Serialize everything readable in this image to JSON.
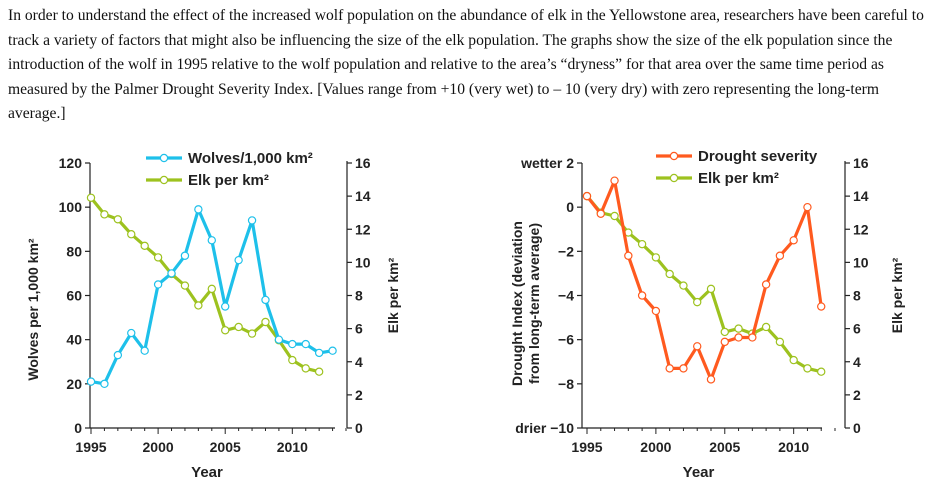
{
  "intro_text": "In order to understand the effect of the increased wolf population on the abundance of elk in the Yellowstone area, researchers have been careful to track a variety of factors that might also be influencing the size of the elk population. The graphs show the size of the elk population since the introduction of the wolf in 1995 relative to the wolf population and relative to the area’s “dryness” for that area over the same time period as measured by the Palmer Drought Severity Index. [Values range from +10 (very wet) to – 10 (very dry) with zero representing the long-term average.]",
  "colors": {
    "wolves": "#1ec0ea",
    "elk": "#9dc21f",
    "drought": "#ff5a1f",
    "axis": "#222222"
  },
  "chart_data": [
    {
      "type": "line",
      "xlabel": "Year",
      "ylabel_left": "Wolves per 1,000 km²",
      "ylabel_right": "Elk per km²",
      "xlim": [
        1995,
        2014
      ],
      "x_ticks": [
        1995,
        2000,
        2005,
        2010
      ],
      "x_tick_labels": [
        "1995",
        "2000",
        "2005",
        "2010"
      ],
      "ylim_left": [
        0,
        120
      ],
      "y_ticks_left": [
        0,
        20,
        40,
        60,
        80,
        100,
        120
      ],
      "y_tick_labels_left": [
        "0",
        "20",
        "40",
        "60",
        "80",
        "100",
        "120"
      ],
      "ylim_right": [
        0,
        16
      ],
      "y_ticks_right": [
        0,
        2,
        4,
        6,
        8,
        10,
        12,
        14,
        16
      ],
      "y_tick_labels_right": [
        "0",
        "2",
        "4",
        "6",
        "8",
        "10",
        "12",
        "14",
        "16"
      ],
      "legend": [
        "Wolves/1,000 km²",
        "Elk per km²"
      ],
      "legend_position": "top-center",
      "series": [
        {
          "name": "Wolves/1,000 km²",
          "axis": "left",
          "x": [
            1995,
            1996,
            1997,
            1998,
            1999,
            2000,
            2001,
            2002,
            2003,
            2004,
            2005,
            2006,
            2007,
            2008,
            2009,
            2010,
            2011,
            2012,
            2013
          ],
          "values": [
            21,
            20,
            33,
            43,
            35,
            65,
            70,
            78,
            99,
            85,
            55,
            76,
            94,
            58,
            40,
            38,
            38,
            34,
            35
          ]
        },
        {
          "name": "Elk per km²",
          "axis": "right",
          "x": [
            1995,
            1996,
            1997,
            1998,
            1999,
            2000,
            2001,
            2002,
            2003,
            2004,
            2005,
            2006,
            2007,
            2008,
            2009,
            2010,
            2011,
            2012
          ],
          "values": [
            13.9,
            12.9,
            12.6,
            11.7,
            11.0,
            10.3,
            9.3,
            8.6,
            7.4,
            8.4,
            5.9,
            6.1,
            5.7,
            6.4,
            5.3,
            4.1,
            3.6,
            3.4
          ]
        }
      ]
    },
    {
      "type": "line",
      "xlabel": "Year",
      "ylabel_left": "Drought Index (deviation from long-term average)",
      "ylabel_right": "Elk per km²",
      "xlim": [
        1995,
        2013
      ],
      "x_ticks": [
        1995,
        2000,
        2005,
        2010
      ],
      "x_tick_labels": [
        "1995",
        "2000",
        "2005",
        "2010"
      ],
      "ylim_left": [
        -10,
        2
      ],
      "y_ticks_left": [
        -10,
        -8,
        -6,
        -4,
        -2,
        0,
        2
      ],
      "y_tick_labels_left": [
        "drier −10",
        "−8",
        "−6",
        "−4",
        "−2",
        "0",
        "wetter 2"
      ],
      "ylim_right": [
        0,
        16
      ],
      "y_ticks_right": [
        0,
        2,
        4,
        6,
        8,
        10,
        12,
        14,
        16
      ],
      "y_tick_labels_right": [
        "0",
        "2",
        "4",
        "6",
        "8",
        "10",
        "12",
        "14",
        "16"
      ],
      "legend": [
        "Drought severity",
        "Elk per km²"
      ],
      "legend_position": "top-right",
      "series": [
        {
          "name": "Drought severity",
          "axis": "left",
          "x": [
            1995,
            1996,
            1997,
            1998,
            1999,
            2000,
            2001,
            2002,
            2003,
            2004,
            2005,
            2006,
            2007,
            2008,
            2009,
            2010,
            2011,
            2012
          ],
          "values": [
            0.5,
            -0.3,
            1.2,
            -2.2,
            -4.0,
            -4.7,
            -7.3,
            -7.3,
            -6.3,
            -7.8,
            -6.1,
            -5.9,
            -5.9,
            -3.5,
            -2.2,
            -1.5,
            0.0,
            -4.5
          ]
        },
        {
          "name": "Elk per km²",
          "axis": "right",
          "x": [
            1995,
            1996,
            1997,
            1998,
            1999,
            2000,
            2001,
            2002,
            2003,
            2004,
            2005,
            2006,
            2007,
            2008,
            2009,
            2010,
            2011,
            2012
          ],
          "values": [
            14.0,
            13.0,
            12.8,
            11.8,
            11.1,
            10.3,
            9.3,
            8.6,
            7.6,
            8.4,
            5.8,
            6.0,
            5.7,
            6.1,
            5.2,
            4.1,
            3.6,
            3.4
          ]
        }
      ]
    }
  ]
}
